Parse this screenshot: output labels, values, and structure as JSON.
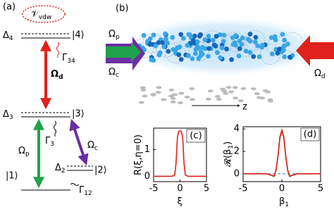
{
  "panel_a": {
    "label": "(a)",
    "vdw": {
      "text": "𝒱",
      "sub": "vdw"
    },
    "delta4": {
      "text": "Δ",
      "sub": "4"
    },
    "ket4": "|4⟩",
    "gamma34": {
      "text": "Γ",
      "sub": "34"
    },
    "omega_d": {
      "text": "Ω",
      "sub": "d"
    },
    "delta3": {
      "text": "Δ",
      "sub": "3"
    },
    "ket3": "|3⟩",
    "gamma3": {
      "text": "Γ",
      "sub": "3"
    },
    "omega_p": {
      "text": "Ω",
      "sub": "p"
    },
    "omega_c": {
      "text": "Ω",
      "sub": "c"
    },
    "delta2": {
      "text": "Δ",
      "sub": "2"
    },
    "ket2": "|2⟩",
    "gamma12": {
      "text": "Γ",
      "sub": "12"
    },
    "ket1": "|1⟩"
  },
  "panel_b": {
    "label": "(b)",
    "omega_p": {
      "text": "Ω",
      "sub": "p"
    },
    "omega_c": {
      "text": "Ω",
      "sub": "c"
    },
    "omega_d": {
      "text": "Ω",
      "sub": "d"
    },
    "axis": "z"
  },
  "chart_data": [
    {
      "type": "line",
      "panel_label": "(c)",
      "y_label": {
        "text": "R(ξ,η=0)"
      },
      "x_label": {
        "text": "ξ"
      },
      "xlim": [
        -5,
        5
      ],
      "xticks": [
        -5,
        0,
        5
      ],
      "ylim": [
        -0.2,
        1.8
      ],
      "yticks": [
        0,
        1
      ],
      "series": [
        {
          "color": "#e0201b",
          "x": [
            -5,
            -1.5,
            -1,
            -0.75,
            -0.5,
            -0.25,
            0,
            0.25,
            0.5,
            0.75,
            1,
            1.5,
            5
          ],
          "values": [
            0,
            0,
            0.05,
            0.5,
            1.45,
            1.68,
            1.7,
            1.68,
            1.45,
            0.5,
            0.05,
            0,
            0
          ]
        }
      ]
    },
    {
      "type": "line",
      "panel_label": "(d)",
      "y_label": {
        "text": "𝓡(β",
        "sub": "1",
        "tail": ")"
      },
      "x_label": {
        "text": "β",
        "sub": "1"
      },
      "xlim": [
        -5,
        5
      ],
      "xticks": [
        -5,
        0,
        5
      ],
      "ylim": [
        -0.7,
        4.2
      ],
      "yticks": [
        0,
        2,
        4
      ],
      "series": [
        {
          "color": "#2f7fd0",
          "dashed": true,
          "x": [
            -5,
            5
          ],
          "values": [
            0,
            0
          ]
        },
        {
          "color": "#3aa03a",
          "x": [
            -5,
            -2,
            -1.5,
            -1,
            -0.75,
            -0.5,
            -0.25,
            0,
            0.25,
            0.5,
            0.75,
            1,
            1.5,
            2,
            5
          ],
          "values": [
            0,
            0,
            -0.1,
            -0.25,
            0.3,
            1.55,
            3.2,
            3.8,
            3.2,
            1.55,
            0.3,
            -0.25,
            -0.1,
            0,
            0
          ]
        },
        {
          "color": "#e0201b",
          "x": [
            -5,
            -2,
            -1.5,
            -1,
            -0.75,
            -0.5,
            -0.25,
            0,
            0.25,
            0.5,
            0.75,
            1,
            1.5,
            2,
            5
          ],
          "values": [
            0,
            0,
            -0.1,
            -0.2,
            0.35,
            1.6,
            3.3,
            3.9,
            3.3,
            1.6,
            0.35,
            -0.2,
            -0.1,
            0,
            0
          ]
        }
      ]
    }
  ]
}
